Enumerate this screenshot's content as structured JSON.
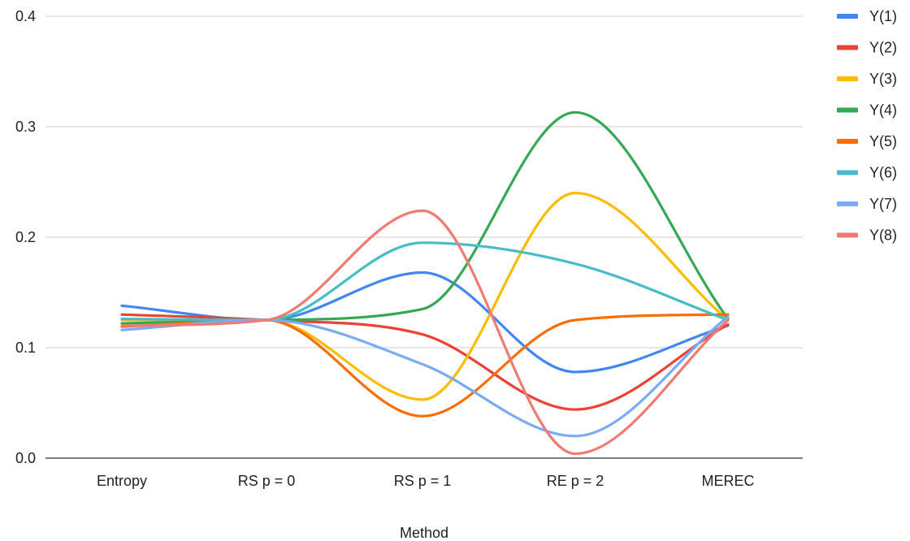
{
  "chart_data": {
    "type": "line",
    "title": "",
    "xlabel": "Method",
    "ylabel": "",
    "categories": [
      "Entropy",
      "RS p = 0",
      "RS p = 1",
      "RE p = 2",
      "MEREC"
    ],
    "ylim": [
      0,
      0.4
    ],
    "yticks": [
      "0.0",
      "0.1",
      "0.2",
      "0.3",
      "0.4"
    ],
    "grid": true,
    "smooth": true,
    "legend": "right",
    "series": [
      {
        "name": "Y(1)",
        "color": "#4285f4",
        "values": [
          0.138,
          0.125,
          0.168,
          0.078,
          0.12
        ]
      },
      {
        "name": "Y(2)",
        "color": "#ea4335",
        "values": [
          0.13,
          0.125,
          0.112,
          0.044,
          0.121
        ]
      },
      {
        "name": "Y(3)",
        "color": "#fbbc04",
        "values": [
          0.125,
          0.125,
          0.053,
          0.24,
          0.125
        ]
      },
      {
        "name": "Y(4)",
        "color": "#34a853",
        "values": [
          0.122,
          0.125,
          0.135,
          0.313,
          0.126
        ]
      },
      {
        "name": "Y(5)",
        "color": "#ff6d01",
        "values": [
          0.119,
          0.125,
          0.038,
          0.125,
          0.13
        ]
      },
      {
        "name": "Y(6)",
        "color": "#46bdc6",
        "values": [
          0.126,
          0.125,
          0.195,
          0.176,
          0.125
        ]
      },
      {
        "name": "Y(7)",
        "color": "#7baaf7",
        "values": [
          0.116,
          0.125,
          0.085,
          0.02,
          0.128
        ]
      },
      {
        "name": "Y(8)",
        "color": "#f07b72",
        "values": [
          0.12,
          0.125,
          0.224,
          0.004,
          0.125
        ]
      }
    ]
  }
}
